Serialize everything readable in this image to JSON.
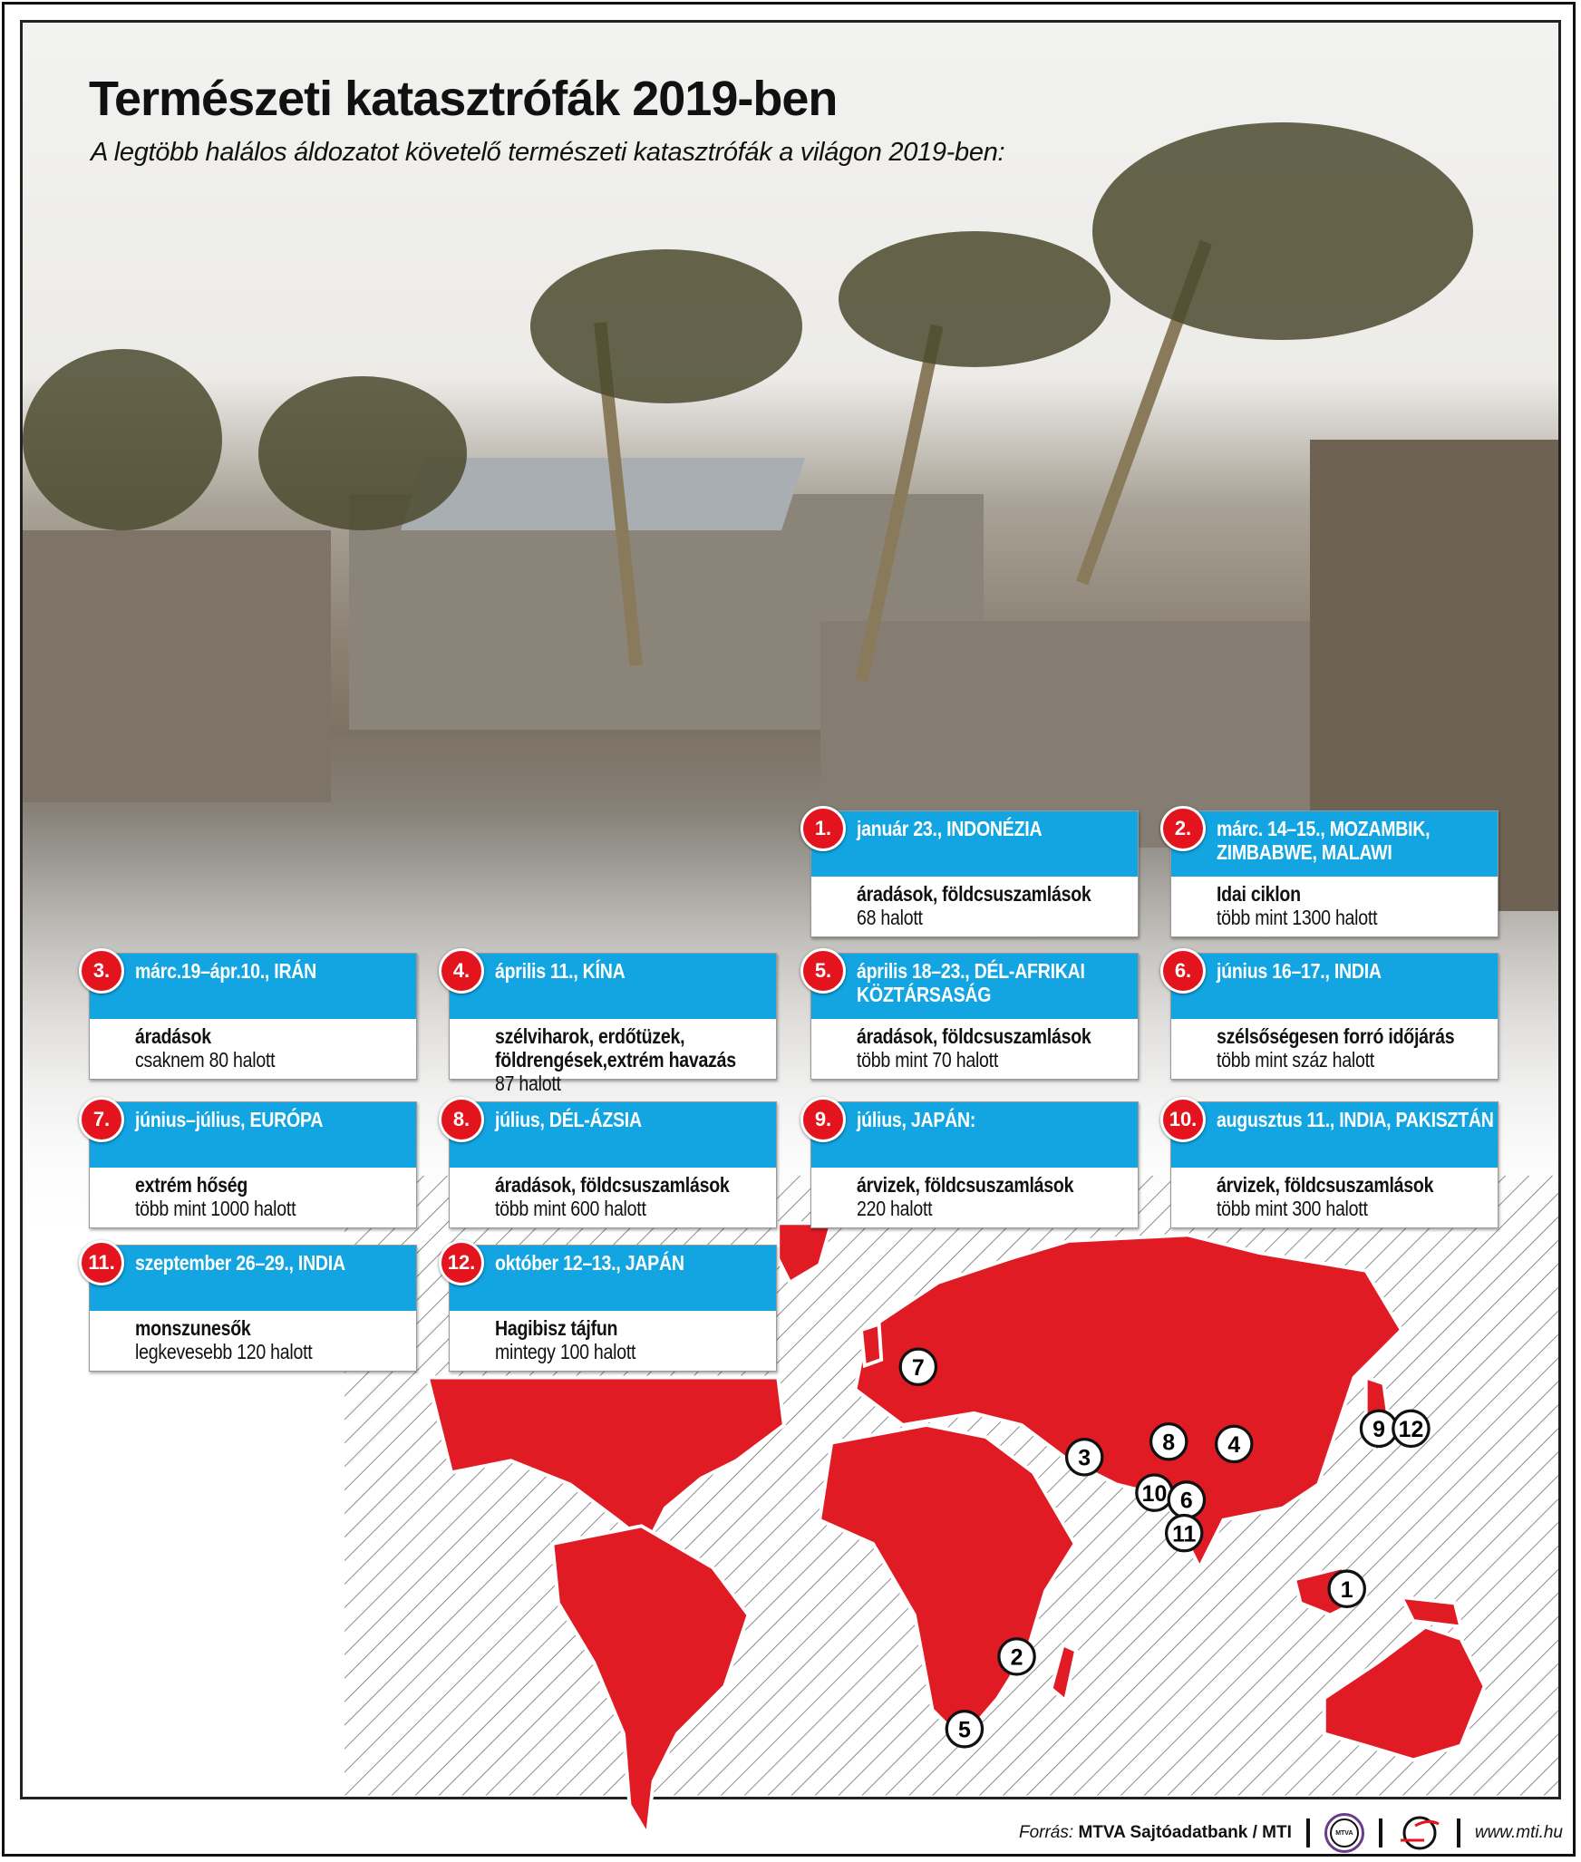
{
  "title": "Természeti katasztrófák 2019-ben",
  "subtitle": "A legtöbb halálos áldozatot követelő természeti katasztrófák a világon 2019-ben:",
  "colors": {
    "header_blue": "#12a5e2",
    "marker_red": "#e3141e",
    "continent_red": "#e01b24"
  },
  "events": [
    {
      "num": "1.",
      "header": "január 23., INDONÉZIA",
      "type": "áradások, földcsuszamlások",
      "deaths": "68 halott"
    },
    {
      "num": "2.",
      "header": "márc. 14–15., MOZAMBIK, ZIMBABWE, MALAWI",
      "type": "Idai ciklon",
      "deaths": "több mint 1300 halott"
    },
    {
      "num": "3.",
      "header": "márc.19–ápr.10., IRÁN",
      "type": "áradások",
      "deaths": "csaknem 80 halott"
    },
    {
      "num": "4.",
      "header": "április 11., KÍNA",
      "type": "szélviharok, erdőtüzek, földrengések,extrém havazás",
      "deaths": "87 halott"
    },
    {
      "num": "5.",
      "header": "április 18–23., DÉL-AFRIKAI KÖZTÁRSASÁG",
      "type": "áradások, földcsuszamlások",
      "deaths": "több mint 70 halott"
    },
    {
      "num": "6.",
      "header": "június 16–17., INDIA",
      "type": "szélsőségesen forró időjárás",
      "deaths": "több mint száz halott"
    },
    {
      "num": "7.",
      "header": "június–július, EURÓPA",
      "type": "extrém hőség",
      "deaths": "több mint 1000 halott"
    },
    {
      "num": "8.",
      "header": "július, DÉL-ÁZSIA",
      "type": "áradások, földcsuszamlások",
      "deaths": "több mint 600 halott"
    },
    {
      "num": "9.",
      "header": "július, JAPÁN:",
      "type": "árvizek, földcsuszamlások",
      "deaths": "220 halott"
    },
    {
      "num": "10.",
      "header": "augusztus 11., INDIA, PAKISZTÁN",
      "type": "árvizek, földcsuszamlások",
      "deaths": "több mint 300 halott"
    },
    {
      "num": "11.",
      "header": "szeptember 26–29., INDIA",
      "type": "monszunesők",
      "deaths": "legkevesebb 120 halott"
    },
    {
      "num": "12.",
      "header": "október 12–13., JAPÁN",
      "type": "Hagibisz tájfun",
      "deaths": "mintegy 100 halott"
    }
  ],
  "map": {
    "markers": [
      "7",
      "3",
      "8",
      "4",
      "10",
      "6",
      "11",
      "9",
      "12",
      "1",
      "2",
      "5"
    ]
  },
  "footer": {
    "source_label": "Forrás:",
    "source": "MTVA Sajtóadatbank / MTI",
    "logo_text": "MTVA",
    "url": "www.mti.hu"
  }
}
